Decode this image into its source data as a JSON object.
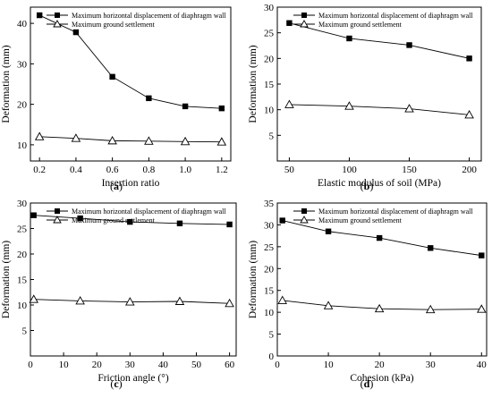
{
  "chart_data": [
    {
      "type": "line",
      "panel": "a",
      "xlabel": "Insertion ratio",
      "ylabel": "Deformation (mm)",
      "x": [
        0.2,
        0.4,
        0.6,
        0.8,
        1.0,
        1.2
      ],
      "xticks": [
        "0.2",
        "0.4",
        "0.6",
        "0.8",
        "1.0",
        "1.2"
      ],
      "xlim": [
        0.15,
        1.25
      ],
      "yticks": [
        "10",
        "20",
        "30",
        "40"
      ],
      "ylim": [
        6,
        44
      ],
      "series": [
        {
          "name": "Maximum horizontal displacement of diaphragm wall",
          "marker": "square",
          "values": [
            42.0,
            37.8,
            26.8,
            21.5,
            19.5,
            19.0
          ]
        },
        {
          "name": "Maximum ground settlement",
          "marker": "triangle",
          "values": [
            12.0,
            11.6,
            11.0,
            10.9,
            10.8,
            10.7
          ]
        }
      ]
    },
    {
      "type": "line",
      "panel": "b",
      "xlabel": "Elastic modulus of soil (MPa)",
      "ylabel": "Deformation (mm)",
      "x": [
        50,
        100,
        150,
        200
      ],
      "xticks": [
        "50",
        "100",
        "150",
        "200"
      ],
      "xlim": [
        40,
        210
      ],
      "yticks": [
        "5",
        "10",
        "15",
        "20",
        "25",
        "30"
      ],
      "ylim": [
        0,
        30
      ],
      "series": [
        {
          "name": "Maximum horizontal displacement of diaphragm wall",
          "marker": "square",
          "values": [
            26.9,
            23.9,
            22.6,
            20.0
          ]
        },
        {
          "name": "Maximum ground settlement",
          "marker": "triangle",
          "values": [
            11.0,
            10.7,
            10.2,
            9.0
          ]
        }
      ]
    },
    {
      "type": "line",
      "panel": "c",
      "xlabel": "Friction angle (°)",
      "ylabel": "Deformation (mm)",
      "x": [
        1,
        15,
        30,
        45,
        60
      ],
      "xticks": [
        "0",
        "10",
        "20",
        "30",
        "40",
        "50",
        "60"
      ],
      "xlim": [
        0,
        62
      ],
      "yticks": [
        "5",
        "10",
        "15",
        "20",
        "25",
        "30"
      ],
      "ylim": [
        0,
        30
      ],
      "series": [
        {
          "name": "Maximum horizontal displacement of diaphragm wall",
          "marker": "square",
          "values": [
            27.6,
            27.0,
            26.3,
            26.0,
            25.8
          ]
        },
        {
          "name": "Maximum ground settlement",
          "marker": "triangle",
          "values": [
            11.1,
            10.8,
            10.6,
            10.7,
            10.3
          ]
        }
      ]
    },
    {
      "type": "line",
      "panel": "d",
      "xlabel": "Cohesion (kPa)",
      "ylabel": "Deformation (mm)",
      "x": [
        1,
        10,
        20,
        30,
        40
      ],
      "xticks": [
        "0",
        "10",
        "20",
        "30",
        "40"
      ],
      "xlim": [
        0,
        41
      ],
      "yticks": [
        "0",
        "5",
        "10",
        "15",
        "20",
        "25",
        "30",
        "35"
      ],
      "ylim": [
        0,
        35
      ],
      "series": [
        {
          "name": "Maximum horizontal displacement of diaphragm wall",
          "marker": "square",
          "values": [
            31.0,
            28.5,
            27.0,
            24.7,
            23.0
          ]
        },
        {
          "name": "Maximum ground settlement",
          "marker": "triangle",
          "values": [
            12.7,
            11.5,
            10.8,
            10.6,
            10.7
          ]
        }
      ]
    }
  ],
  "panel_labels": [
    "(a)",
    "(b)",
    "(c)",
    "(d)"
  ]
}
